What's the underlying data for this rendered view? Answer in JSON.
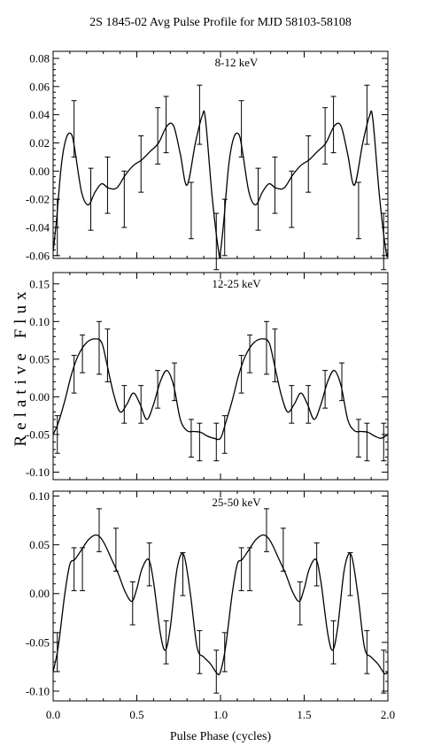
{
  "title": "2S 1845-02 Avg Pulse Profile for MJD 58103-58108",
  "ylabel": "Relative Flux",
  "xlabel": "Pulse Phase (cycles)",
  "chart_data": [
    {
      "type": "line",
      "label": "8-12 keV",
      "xlim": [
        0.0,
        2.0
      ],
      "ylim": [
        -0.062,
        0.085
      ],
      "yticks": [
        -0.06,
        -0.04,
        -0.02,
        0.0,
        0.02,
        0.04,
        0.06,
        0.08
      ],
      "ytick_labels": [
        "-0.06",
        "-0.04",
        "-0.02",
        "0.00",
        "0.02",
        "0.04",
        "0.06",
        "0.08"
      ],
      "x": [
        0.0,
        0.02,
        0.05,
        0.08,
        0.11,
        0.13,
        0.17,
        0.21,
        0.25,
        0.29,
        0.33,
        0.38,
        0.43,
        0.48,
        0.53,
        0.58,
        0.63,
        0.68,
        0.72,
        0.76,
        0.8,
        0.85,
        0.89,
        0.91,
        0.95,
        0.99,
        1.0,
        1.02,
        1.05,
        1.08,
        1.11,
        1.13,
        1.17,
        1.21,
        1.25,
        1.29,
        1.33,
        1.38,
        1.43,
        1.48,
        1.53,
        1.58,
        1.63,
        1.68,
        1.72,
        1.76,
        1.8,
        1.85,
        1.89,
        1.91,
        1.95,
        1.99,
        2.0
      ],
      "y": [
        -0.057,
        -0.035,
        0.005,
        0.024,
        0.026,
        0.015,
        -0.015,
        -0.024,
        -0.015,
        -0.009,
        -0.012,
        -0.012,
        -0.003,
        0.004,
        0.008,
        0.014,
        0.02,
        0.032,
        0.032,
        0.012,
        -0.01,
        0.02,
        0.039,
        0.037,
        -0.018,
        -0.058,
        -0.057,
        -0.035,
        0.005,
        0.024,
        0.026,
        0.015,
        -0.015,
        -0.024,
        -0.015,
        -0.009,
        -0.012,
        -0.012,
        -0.003,
        0.004,
        0.008,
        0.014,
        0.02,
        0.032,
        0.032,
        0.012,
        -0.01,
        0.02,
        0.039,
        0.037,
        -0.018,
        -0.058,
        -0.057
      ],
      "points": {
        "x": [
          0.025,
          0.125,
          0.225,
          0.325,
          0.425,
          0.525,
          0.625,
          0.675,
          0.825,
          0.875,
          0.975,
          1.025,
          1.125,
          1.225,
          1.325,
          1.425,
          1.525,
          1.625,
          1.675,
          1.825,
          1.875,
          1.975
        ],
        "y": [
          -0.04,
          0.03,
          -0.02,
          -0.01,
          -0.02,
          0.005,
          0.025,
          0.033,
          -0.028,
          0.04,
          -0.05,
          -0.04,
          0.03,
          -0.02,
          -0.01,
          -0.02,
          0.005,
          0.025,
          0.033,
          -0.028,
          0.04,
          -0.05
        ],
        "err": [
          0.02,
          0.02,
          0.022,
          0.02,
          0.02,
          0.02,
          0.02,
          0.02,
          0.02,
          0.021,
          0.02,
          0.02,
          0.02,
          0.022,
          0.02,
          0.02,
          0.02,
          0.02,
          0.02,
          0.02,
          0.021,
          0.02
        ]
      }
    },
    {
      "type": "line",
      "label": "12-25 keV",
      "xlim": [
        0.0,
        2.0
      ],
      "ylim": [
        -0.11,
        0.165
      ],
      "yticks": [
        -0.1,
        -0.05,
        0.0,
        0.05,
        0.1,
        0.15
      ],
      "ytick_labels": [
        "-0.10",
        "-0.05",
        "0.00",
        "0.05",
        "0.10",
        "0.15"
      ],
      "x": [
        0.0,
        0.03,
        0.07,
        0.11,
        0.15,
        0.2,
        0.25,
        0.29,
        0.32,
        0.36,
        0.4,
        0.44,
        0.48,
        0.52,
        0.56,
        0.6,
        0.64,
        0.68,
        0.72,
        0.76,
        0.8,
        0.84,
        0.88,
        0.92,
        0.96,
        1.0,
        1.03,
        1.07,
        1.11,
        1.15,
        1.2,
        1.25,
        1.29,
        1.32,
        1.36,
        1.4,
        1.44,
        1.48,
        1.52,
        1.56,
        1.6,
        1.64,
        1.68,
        1.72,
        1.76,
        1.8,
        1.84,
        1.88,
        1.92,
        1.96,
        2.0
      ],
      "y": [
        -0.05,
        -0.035,
        -0.005,
        0.03,
        0.055,
        0.072,
        0.077,
        0.072,
        0.045,
        0.005,
        -0.02,
        -0.01,
        0.005,
        -0.01,
        -0.03,
        -0.01,
        0.02,
        0.035,
        0.015,
        -0.03,
        -0.045,
        -0.046,
        -0.047,
        -0.052,
        -0.055,
        -0.055,
        -0.035,
        -0.005,
        0.03,
        0.055,
        0.072,
        0.077,
        0.072,
        0.045,
        0.005,
        -0.02,
        -0.01,
        0.005,
        -0.01,
        -0.03,
        -0.01,
        0.02,
        0.035,
        0.015,
        -0.03,
        -0.045,
        -0.046,
        -0.047,
        -0.052,
        -0.055,
        -0.05
      ],
      "points": {
        "x": [
          0.025,
          0.125,
          0.175,
          0.275,
          0.325,
          0.425,
          0.525,
          0.625,
          0.725,
          0.825,
          0.875,
          0.975,
          1.025,
          1.125,
          1.175,
          1.275,
          1.325,
          1.425,
          1.525,
          1.625,
          1.725,
          1.825,
          1.875,
          1.975
        ],
        "y": [
          -0.05,
          0.03,
          0.057,
          0.065,
          0.055,
          -0.01,
          -0.01,
          0.01,
          0.02,
          -0.055,
          -0.06,
          -0.06,
          -0.05,
          0.03,
          0.057,
          0.065,
          0.055,
          -0.01,
          -0.01,
          0.01,
          0.02,
          -0.055,
          -0.06,
          -0.06
        ],
        "err": [
          0.025,
          0.025,
          0.025,
          0.035,
          0.035,
          0.025,
          0.025,
          0.025,
          0.025,
          0.025,
          0.025,
          0.025,
          0.025,
          0.025,
          0.025,
          0.035,
          0.035,
          0.025,
          0.025,
          0.025,
          0.025,
          0.025,
          0.025,
          0.025
        ]
      }
    },
    {
      "type": "line",
      "label": "25-50 keV",
      "xlim": [
        0.0,
        2.0
      ],
      "ylim": [
        -0.11,
        0.105
      ],
      "yticks": [
        -0.1,
        -0.05,
        0.0,
        0.05,
        0.1
      ],
      "ytick_labels": [
        "-0.10",
        "-0.05",
        "0.00",
        "0.05",
        "0.10"
      ],
      "x": [
        0.0,
        0.03,
        0.07,
        0.1,
        0.13,
        0.17,
        0.21,
        0.25,
        0.28,
        0.31,
        0.35,
        0.39,
        0.43,
        0.47,
        0.5,
        0.53,
        0.57,
        0.6,
        0.64,
        0.67,
        0.7,
        0.74,
        0.78,
        0.82,
        0.86,
        0.9,
        0.94,
        0.98,
        1.0,
        1.03,
        1.07,
        1.1,
        1.13,
        1.17,
        1.21,
        1.25,
        1.28,
        1.31,
        1.35,
        1.39,
        1.43,
        1.47,
        1.5,
        1.53,
        1.57,
        1.6,
        1.64,
        1.67,
        1.7,
        1.74,
        1.78,
        1.82,
        1.86,
        1.9,
        1.94,
        1.98,
        2.0
      ],
      "y": [
        -0.08,
        -0.055,
        0.0,
        0.03,
        0.035,
        0.045,
        0.055,
        0.06,
        0.058,
        0.05,
        0.035,
        0.02,
        0.002,
        -0.008,
        0.005,
        0.025,
        0.035,
        0.012,
        -0.04,
        -0.058,
        -0.035,
        0.025,
        0.04,
        0.0,
        -0.055,
        -0.065,
        -0.072,
        -0.082,
        -0.08,
        -0.055,
        0.0,
        0.03,
        0.035,
        0.045,
        0.055,
        0.06,
        0.058,
        0.05,
        0.035,
        0.02,
        0.002,
        -0.008,
        0.005,
        0.025,
        0.035,
        0.012,
        -0.04,
        -0.058,
        -0.035,
        0.025,
        0.04,
        0.0,
        -0.055,
        -0.065,
        -0.072,
        -0.082,
        -0.08
      ],
      "points": {
        "x": [
          0.025,
          0.125,
          0.175,
          0.275,
          0.375,
          0.475,
          0.575,
          0.675,
          0.775,
          0.875,
          0.975,
          1.025,
          1.125,
          1.175,
          1.275,
          1.375,
          1.475,
          1.575,
          1.675,
          1.775,
          1.875,
          1.975
        ],
        "y": [
          -0.06,
          0.025,
          0.025,
          0.065,
          0.045,
          -0.01,
          0.03,
          -0.05,
          0.02,
          -0.06,
          -0.08,
          -0.06,
          0.025,
          0.025,
          0.065,
          0.045,
          -0.01,
          0.03,
          -0.05,
          0.02,
          -0.06,
          -0.08
        ],
        "err": [
          0.02,
          0.022,
          0.022,
          0.022,
          0.022,
          0.022,
          0.022,
          0.022,
          0.022,
          0.022,
          0.022,
          0.02,
          0.022,
          0.022,
          0.022,
          0.022,
          0.022,
          0.022,
          0.022,
          0.022,
          0.022,
          0.022
        ]
      }
    }
  ],
  "xticks": [
    0.0,
    0.5,
    1.0,
    1.5,
    2.0
  ],
  "xtick_labels": [
    "0.0",
    "0.5",
    "1.0",
    "1.5",
    "2.0"
  ]
}
